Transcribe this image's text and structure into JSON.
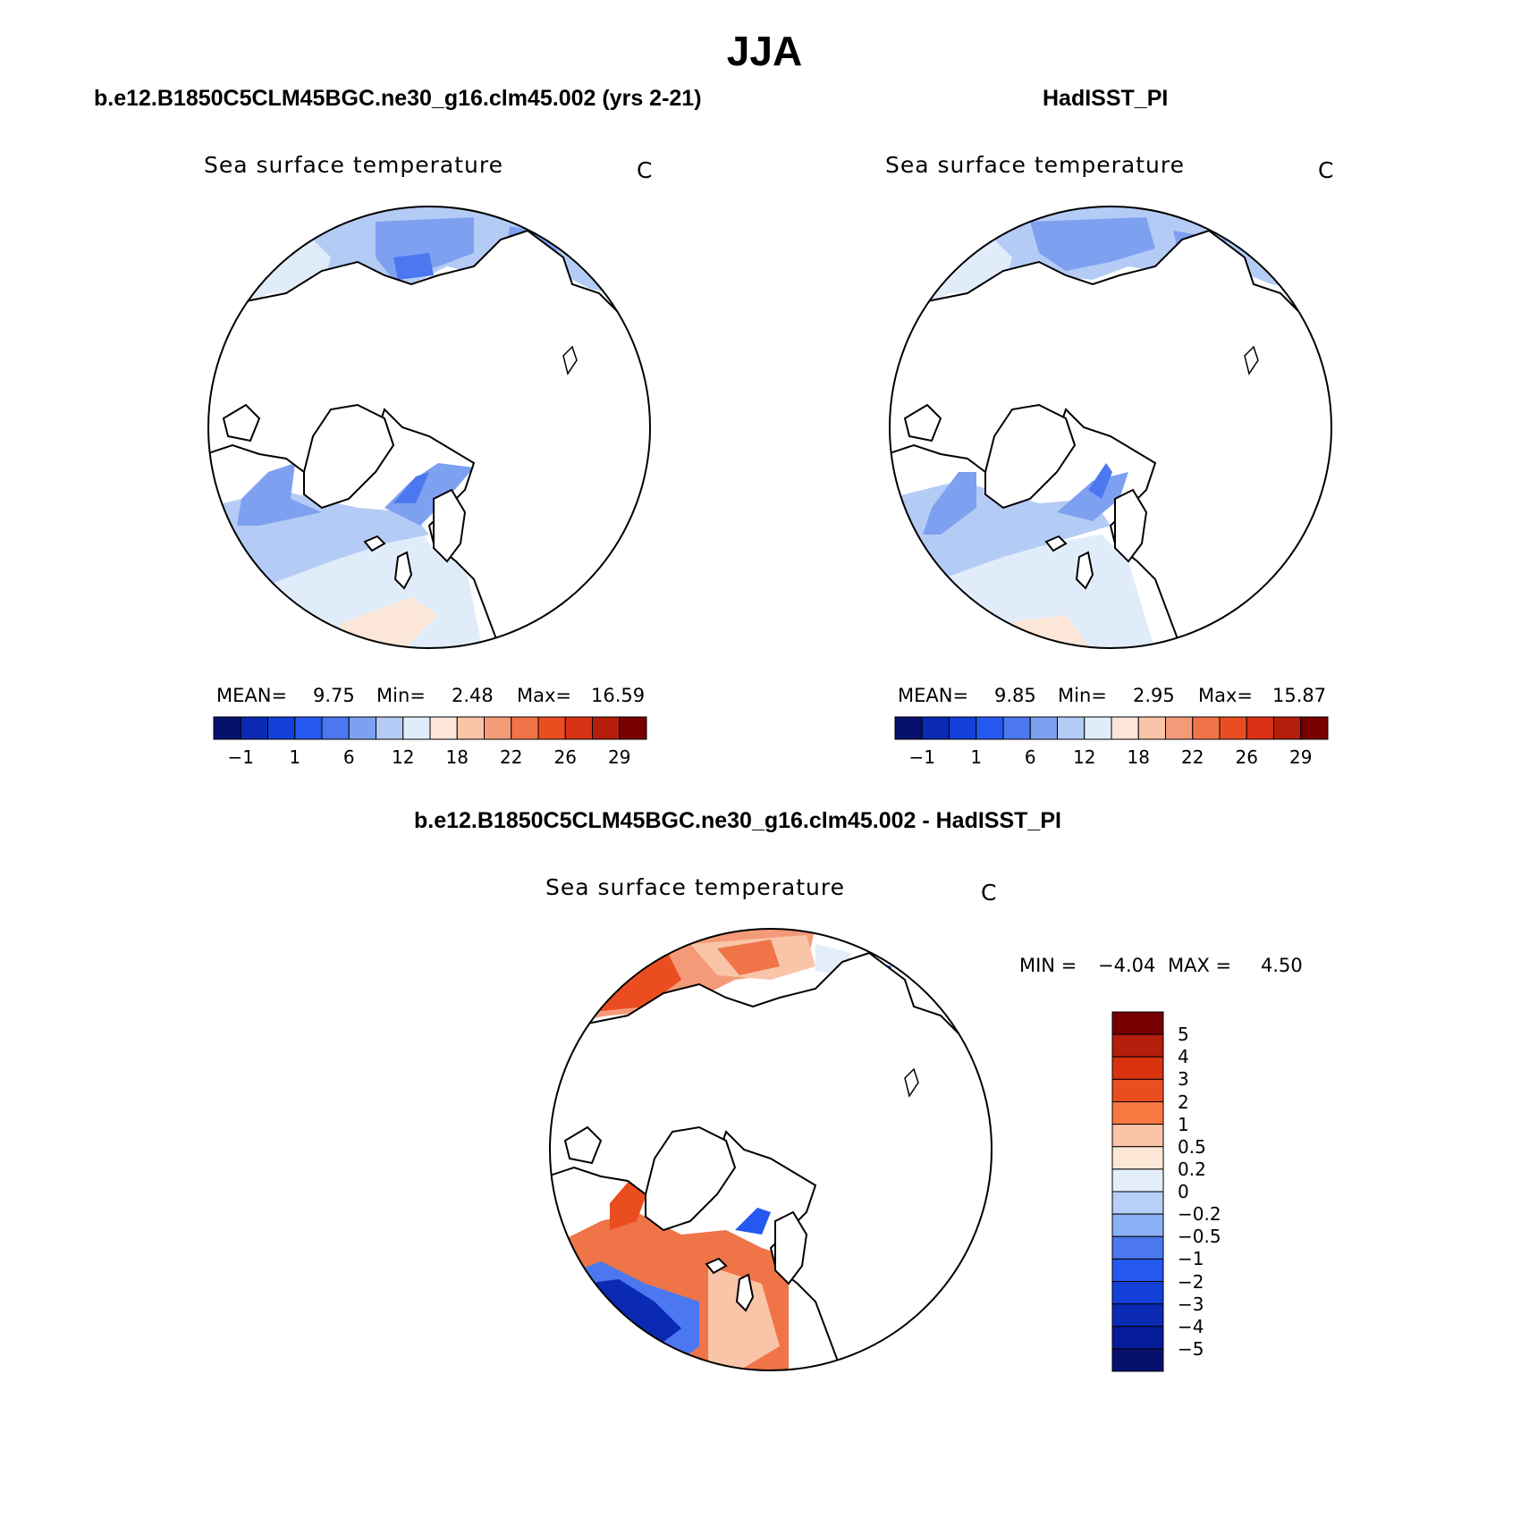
{
  "title": "JJA",
  "panels": [
    {
      "id": "model",
      "case_title": "b.e12.B1850C5CLM45BGC.ne30_g16.clm45.002 (yrs 2-21)",
      "variable": "Sea surface temperature",
      "units": "C",
      "stats": {
        "mean_label": "MEAN=",
        "mean": "9.75",
        "min_label": "Min=",
        "min": "2.48",
        "max_label": "Max=",
        "max": "16.59"
      }
    },
    {
      "id": "obs",
      "case_title": "HadISST_PI",
      "variable": "Sea surface temperature",
      "units": "C",
      "stats": {
        "mean_label": "MEAN=",
        "mean": "9.85",
        "min_label": "Min=",
        "min": "2.95",
        "max_label": "Max=",
        "max": "15.87"
      }
    }
  ],
  "abs_colorbar": {
    "tick_labels": [
      "−1",
      "1",
      "6",
      "12",
      "18",
      "22",
      "26",
      "29"
    ],
    "colors": [
      "#08106e",
      "#0a2ab4",
      "#1240d8",
      "#2458f0",
      "#4b78f0",
      "#7da0f0",
      "#b4ccf5",
      "#e1ecfa",
      "#fbe6d7",
      "#f9c4a8",
      "#f49a78",
      "#ef7448",
      "#ea4e20",
      "#d83214",
      "#b41e0a",
      "#780000"
    ]
  },
  "diff": {
    "title": "b.e12.B1850C5CLM45BGC.ne30_g16.clm45.002 - HadISST_PI",
    "variable": "Sea surface temperature",
    "units": "C",
    "stats": {
      "min_label": "MIN =",
      "min": "−4.04",
      "max_label": "MAX =",
      "max": "4.50"
    },
    "colorbar": {
      "tick_labels": [
        "5",
        "4",
        "3",
        "2",
        "1",
        "0.5",
        "0.2",
        "0",
        "−0.2",
        "−0.5",
        "−1",
        "−2",
        "−3",
        "−4",
        "−5"
      ],
      "colors": [
        "#780000",
        "#b41e0a",
        "#d8320f",
        "#ea4e20",
        "#f97842",
        "#f9c4a8",
        "#fde8d8",
        "#e4eefb",
        "#b8d0f7",
        "#8cb0f5",
        "#4b78f0",
        "#2458f0",
        "#1240d8",
        "#0a2ab4",
        "#061c9a",
        "#08106e"
      ]
    }
  },
  "map_colors": {
    "land": "#ffffff",
    "coast": "#000000",
    "sst_cold": "#7da0f0",
    "sst_cool": "#b4ccf5",
    "sst_light": "#e1ecfa",
    "sst_blue": "#4b78f0",
    "sst_peach": "#fbe6d7",
    "diff_warm": "#ef7448",
    "diff_warmer": "#ea4e20",
    "diff_light_warm": "#f9c4a8",
    "diff_cold": "#2458f0",
    "diff_colder": "#0a2ab4"
  }
}
